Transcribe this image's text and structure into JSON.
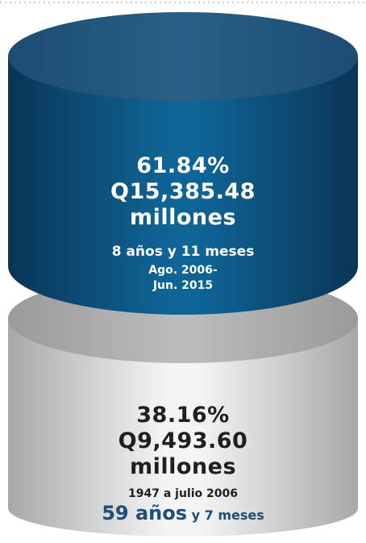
{
  "chart_data": {
    "type": "stacked-cylinder",
    "segments": [
      {
        "position": "top",
        "percent_label": "61.84%",
        "percent": 61.84,
        "amount_label": "Q15,385.48",
        "amount": 15385.48,
        "unit": "millones",
        "duration": "8 años y 11 meses",
        "period_line1": "Ago. 2006-",
        "period_line2": "Jun. 2015",
        "color": "#0f5c8a"
      },
      {
        "position": "bottom",
        "percent_label": "38.16%",
        "percent": 38.16,
        "amount_label": "Q9,493.60",
        "amount": 9493.6,
        "unit": "millones",
        "period": "1947 a julio 2006",
        "duration_big": "59 años",
        "duration_small": "y 7 meses",
        "color": "#d9d9d9",
        "accent_color": "#1f4e79"
      }
    ]
  }
}
